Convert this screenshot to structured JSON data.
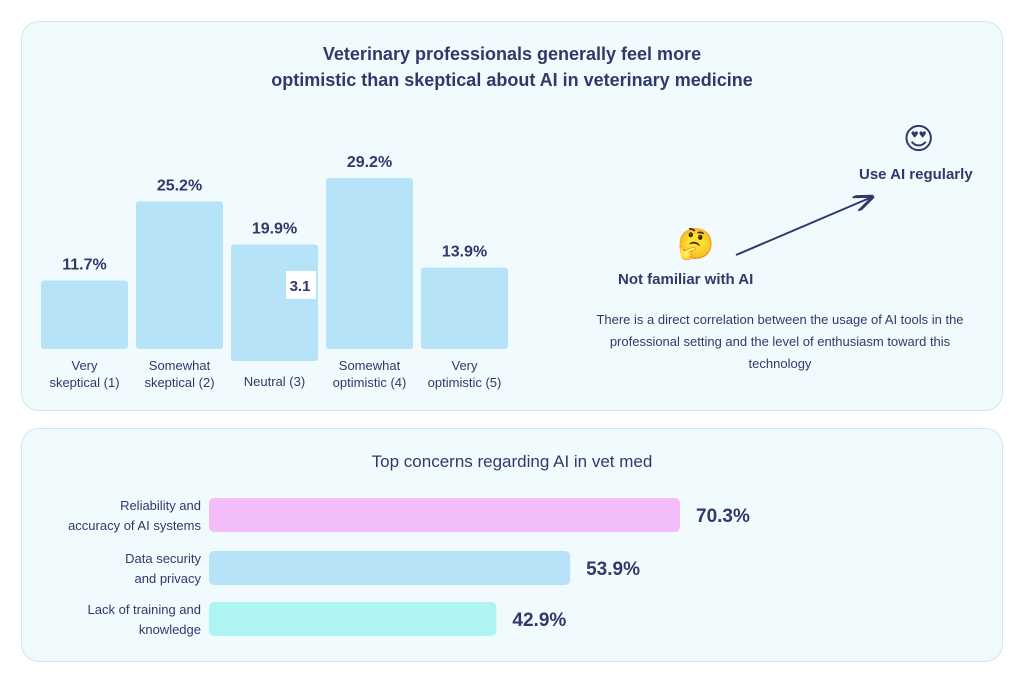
{
  "top_card": {
    "title_line1": "Veterinary professionals generally feel more",
    "title_line2": "optimistic than skeptical about AI in veterinary medicine",
    "not_familiar_label": "Not familiar with AI",
    "use_regularly_label": "Use AI regularly",
    "correlation_text": "There is a direct correlation between the usage of AI tools in the professional setting and the level of enthusiasm toward this technology",
    "not_familiar_emoji": "🤔",
    "use_regularly_emoji": "😍"
  },
  "bottom_card": {
    "title": "Top concerns regarding AI in vet med"
  },
  "colors": {
    "text": "#2f3a6b",
    "bar_blue": "#b7e3f9",
    "bar_pink": "#f3bdf9",
    "bar_cyan": "#aef4f3",
    "card_bg": "#f1fbfd"
  },
  "chart_data": [
    {
      "type": "bar",
      "categories": [
        [
          "Very",
          "skeptical (1)"
        ],
        [
          "Somewhat",
          "skeptical (2)"
        ],
        [
          "Neutral (3)"
        ],
        [
          "Somewhat",
          "optimistic (4)"
        ],
        [
          "Very",
          "optimistic (5)"
        ]
      ],
      "values": [
        11.7,
        25.2,
        19.9,
        29.2,
        13.9
      ],
      "value_labels": [
        "11.7%",
        "25.2%",
        "19.9%",
        "29.2%",
        "13.9%"
      ],
      "annotation": {
        "text": "3.1",
        "category_index": 2
      },
      "grid": false
    },
    {
      "type": "bar",
      "orientation": "horizontal",
      "categories": [
        [
          "Reliability and",
          "accuracy of AI systems"
        ],
        [
          "Data security",
          "and privacy"
        ],
        [
          "Lack of training and",
          "knowledge"
        ]
      ],
      "values": [
        70.3,
        53.9,
        42.9
      ],
      "value_labels": [
        "70.3%",
        "53.9%",
        "42.9%"
      ],
      "bar_colors": [
        "#f3bdf9",
        "#b7e3f9",
        "#aef4f3"
      ],
      "grid": false
    }
  ]
}
